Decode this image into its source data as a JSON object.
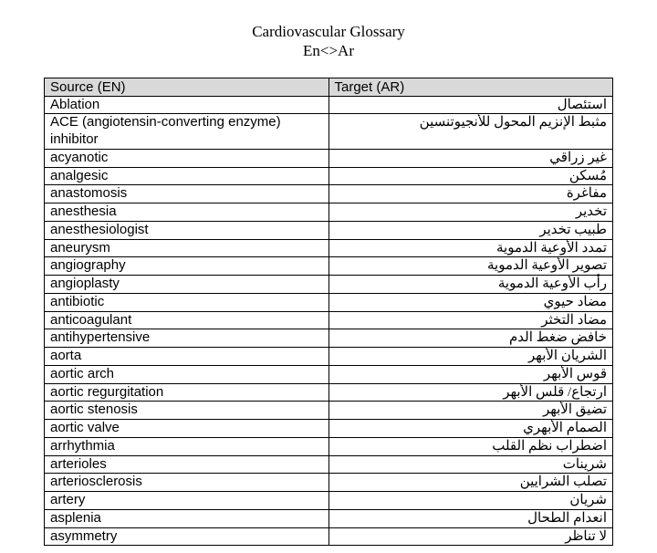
{
  "header": {
    "title_line1": "Cardiovascular Glossary",
    "title_line2": "En<>Ar"
  },
  "table": {
    "columns": [
      "Source (EN)",
      "Target (AR)"
    ],
    "column_widths": [
      "50%",
      "50%"
    ],
    "header_bg": "#d9d9d9",
    "border_color": "#000000",
    "rows": [
      {
        "en": "Ablation",
        "ar": "استئصال"
      },
      {
        "en": "ACE (angiotensin-converting enzyme) inhibitor",
        "ar": "مثبط الإنزيم المحول للأنجيوتنسين"
      },
      {
        "en": "acyanotic",
        "ar": "غير زراقي"
      },
      {
        "en": "analgesic",
        "ar": "مُسكن"
      },
      {
        "en": "anastomosis",
        "ar": "مفاغرة"
      },
      {
        "en": "anesthesia",
        "ar": "تخدير"
      },
      {
        "en": "anesthesiologist",
        "ar": "طبيب تخدير"
      },
      {
        "en": "aneurysm",
        "ar": "تمدد الأوعية الدموية"
      },
      {
        "en": "angiography",
        "ar": "تصوير الأوعية الدموية"
      },
      {
        "en": "angioplasty",
        "ar": "رأب الأوعية الدموية"
      },
      {
        "en": "antibiotic",
        "ar": "مضاد حيوي"
      },
      {
        "en": "anticoagulant",
        "ar": "مضاد التخثر"
      },
      {
        "en": "antihypertensive",
        "ar": "خافض ضغط الدم"
      },
      {
        "en": "aorta",
        "ar": "الشريان الأبهر"
      },
      {
        "en": "aortic arch",
        "ar": "قوس الأبهر"
      },
      {
        "en": "aortic regurgitation",
        "ar": "ارتجاع/ قلس الأبهر"
      },
      {
        "en": "aortic stenosis",
        "ar": "تضيق الأبهر"
      },
      {
        "en": "aortic valve",
        "ar": "الصمام الأبهري"
      },
      {
        "en": "arrhythmia",
        "ar": "اضطراب نظم القلب"
      },
      {
        "en": "arterioles",
        "ar": "شرينات"
      },
      {
        "en": "arteriosclerosis",
        "ar": "تصلب الشرايين"
      },
      {
        "en": "artery",
        "ar": "شريان"
      },
      {
        "en": "asplenia",
        "ar": "انعدام الطحال"
      },
      {
        "en": "asymmetry",
        "ar": "لا تناظر"
      }
    ]
  }
}
